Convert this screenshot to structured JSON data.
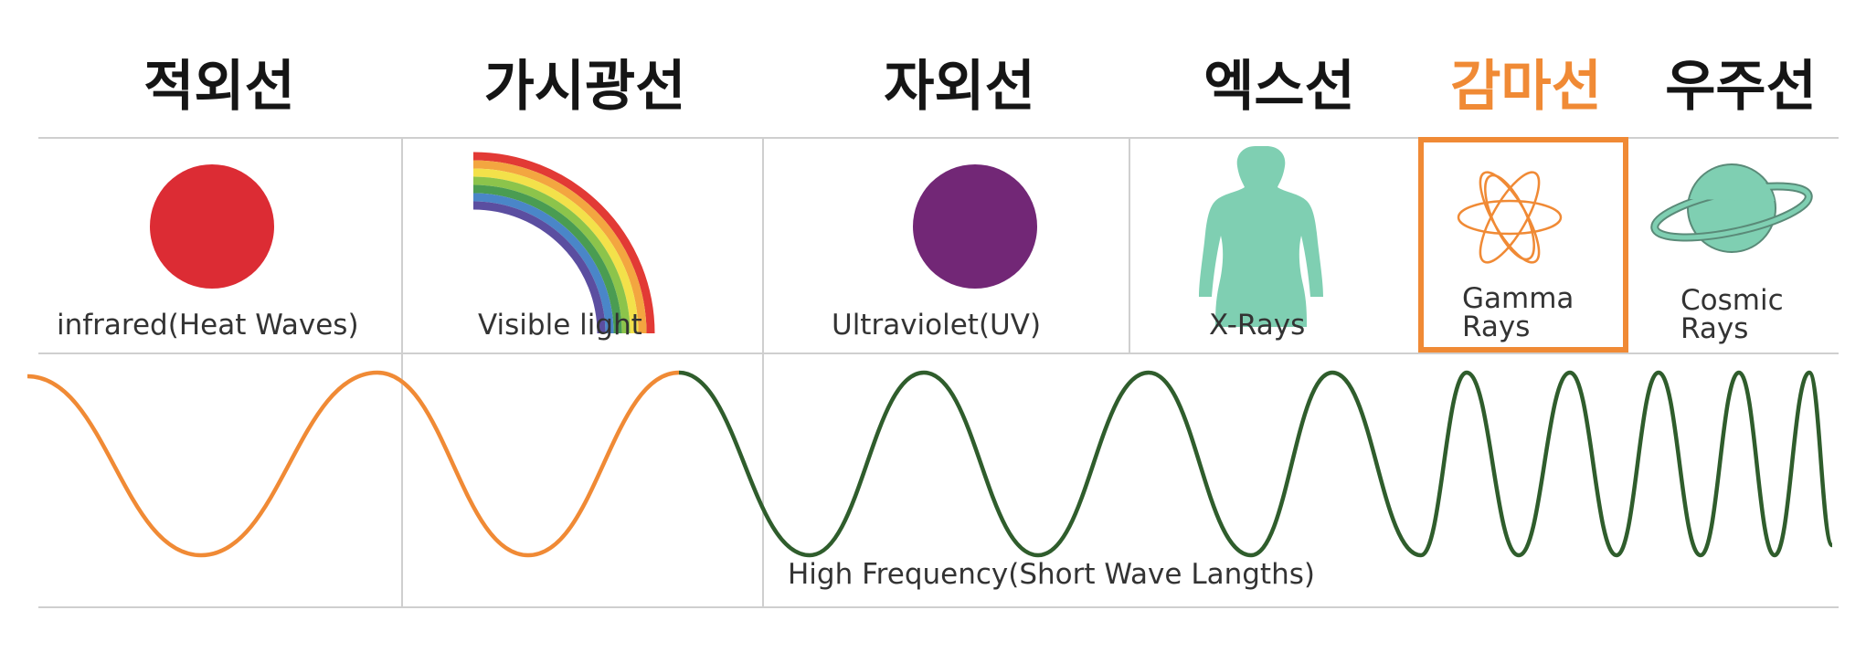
{
  "colors": {
    "highlight": "#f08a35",
    "wave_low": "#f08a35",
    "wave_high": "#2f5d2c",
    "infrared_dot": "#dc2c34",
    "uv_dot": "#722776",
    "icon_teal": "#7fcfb2",
    "grid": "#cfcfcf"
  },
  "columns": [
    {
      "korean": "적외선",
      "label": "infrared(Heat Waves)",
      "icon": "red-circle-icon"
    },
    {
      "korean": "가시광선",
      "label": "Visible light",
      "icon": "rainbow-icon"
    },
    {
      "korean": "자외선",
      "label": "Ultraviolet(UV)",
      "icon": "purple-circle-icon"
    },
    {
      "korean": "엑스선",
      "label": "X-Rays",
      "icon": "human-torso-icon"
    },
    {
      "korean": "감마선",
      "label_line1": "Gamma",
      "label_line2": "Rays",
      "icon": "atom-icon",
      "highlighted": true
    },
    {
      "korean": "우주선",
      "label_line1": "Cosmic",
      "label_line2": "Rays",
      "icon": "planet-icon"
    }
  ],
  "wave_caption": "High Frequency(Short Wave Langths)"
}
